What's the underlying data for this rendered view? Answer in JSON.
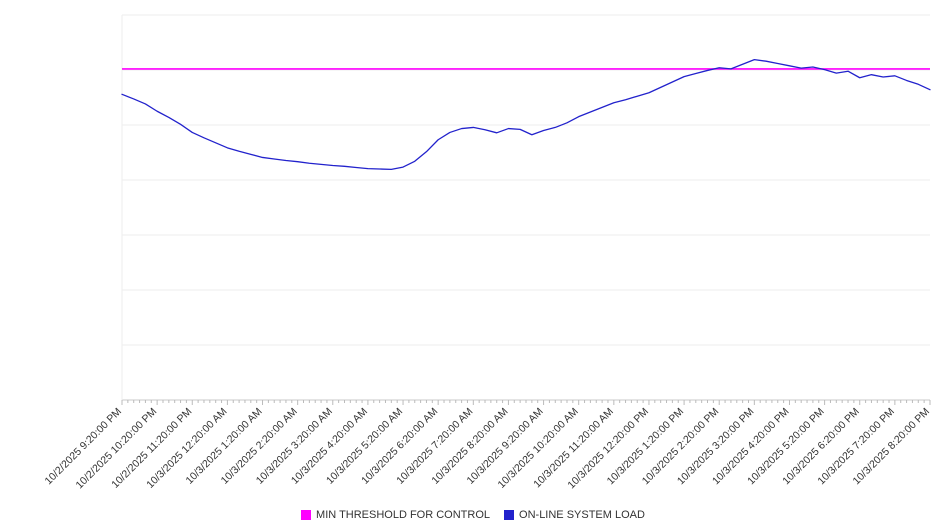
{
  "chart_data": {
    "type": "line",
    "title": "",
    "x_labels": [
      "10/2/2025 9:20:00 PM",
      "10/2/2025 10:20:00 PM",
      "10/2/2025 11:20:00 PM",
      "10/3/2025 12:20:00 AM",
      "10/3/2025 1:20:00 AM",
      "10/3/2025 2:20:00 AM",
      "10/3/2025 3:20:00 AM",
      "10/3/2025 4:20:00 AM",
      "10/3/2025 5:20:00 AM",
      "10/3/2025 6:20:00 AM",
      "10/3/2025 7:20:00 AM",
      "10/3/2025 8:20:00 AM",
      "10/3/2025 9:20:00 AM",
      "10/3/2025 10:20:00 AM",
      "10/3/2025 11:20:00 AM",
      "10/3/2025 12:20:00 PM",
      "10/3/2025 1:20:00 PM",
      "10/3/2025 2:20:00 PM",
      "10/3/2025 3:20:00 PM",
      "10/3/2025 4:20:00 PM",
      "10/3/2025 5:20:00 PM",
      "10/3/2025 6:20:00 PM",
      "10/3/2025 7:20:00 PM",
      "10/3/2025 8:20:00 PM"
    ],
    "x_tick_interval": "1 hour",
    "x_resolution_minutes": 20,
    "y_axis": {
      "min": 0,
      "max": 100,
      "labels_visible": false,
      "gridline_count": 7
    },
    "grid": {
      "gridline_color": "#ededed",
      "axis_color": "#c8c8c8",
      "tick_color": "#bbbbbb",
      "minor_ticks_per_interval": 6
    },
    "label_color": "#333333",
    "threshold": {
      "name": "MIN THRESHOLD FOR CONTROL",
      "value": 86,
      "color": "#ff00ff"
    },
    "series": [
      {
        "name": "ON-LINE SYSTEM LOAD",
        "color": "#2222cc",
        "values": [
          79.4,
          78.2,
          76.9,
          75.0,
          73.4,
          71.6,
          69.5,
          68.1,
          66.8,
          65.5,
          64.6,
          63.8,
          63.0,
          62.6,
          62.2,
          61.9,
          61.5,
          61.2,
          60.9,
          60.7,
          60.4,
          60.1,
          60.0,
          59.9,
          60.5,
          62.0,
          64.5,
          67.6,
          69.5,
          70.5,
          70.8,
          70.2,
          69.4,
          70.5,
          70.3,
          68.9,
          70.0,
          70.8,
          72.0,
          73.6,
          74.8,
          76.0,
          77.2,
          78.0,
          78.9,
          79.8,
          81.2,
          82.6,
          84.0,
          84.8,
          85.6,
          86.3,
          86.0,
          87.2,
          88.4,
          88.0,
          87.4,
          86.8,
          86.2,
          86.5,
          85.8,
          84.9,
          85.4,
          83.7,
          84.5,
          83.9,
          84.2,
          83.0,
          82.0,
          80.6
        ]
      }
    ],
    "legend_position": "bottom"
  }
}
